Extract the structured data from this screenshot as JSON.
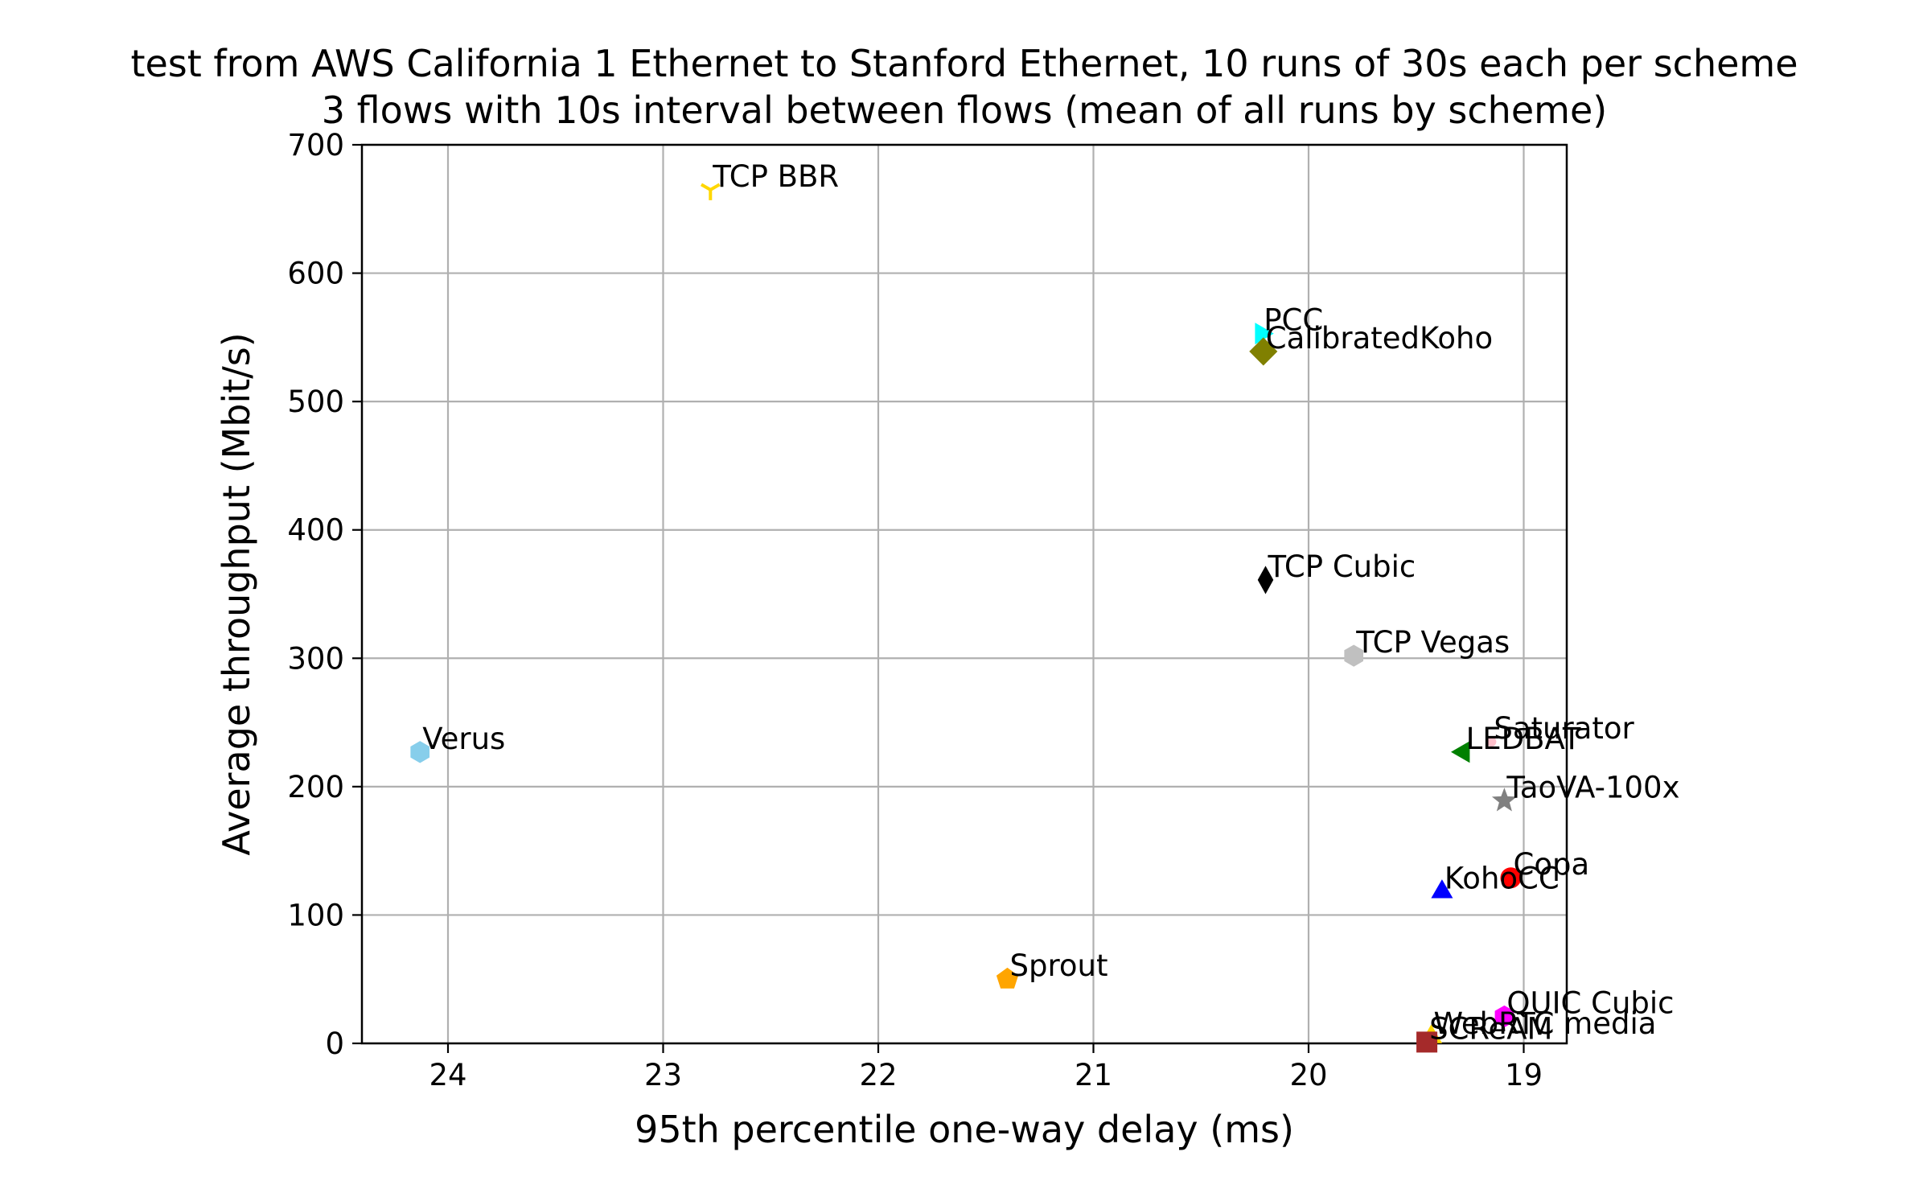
{
  "chart_data": {
    "type": "scatter",
    "title": "test from AWS California 1 Ethernet to Stanford Ethernet, 10 runs of 30s each per scheme",
    "subtitle": "3 flows with 10s interval between flows (mean of all runs by scheme)",
    "xlabel": "95th percentile one-way delay (ms)",
    "ylabel": "Average throughput (Mbit/s)",
    "xlim": [
      24.4,
      18.8
    ],
    "ylim": [
      0,
      700
    ],
    "x_inverted": true,
    "grid": true,
    "xticks": [
      "24",
      "23",
      "22",
      "21",
      "20",
      "19"
    ],
    "xtick_values": [
      24,
      23,
      22,
      21,
      20,
      19
    ],
    "yticks": [
      "0",
      "100",
      "200",
      "300",
      "400",
      "500",
      "600",
      "700"
    ],
    "ytick_values": [
      0,
      100,
      200,
      300,
      400,
      500,
      600,
      700
    ],
    "series": [
      {
        "name": "TCP BBR",
        "x": 22.78,
        "y": 665,
        "color": "#FFD700",
        "marker": "tri"
      },
      {
        "name": "PCC",
        "x": 20.22,
        "y": 553,
        "color": "#00FFFF",
        "marker": "triangle-right"
      },
      {
        "name": "CalibratedKoho",
        "x": 20.21,
        "y": 539,
        "color": "#808000",
        "marker": "diamond"
      },
      {
        "name": "TCP Cubic",
        "x": 20.2,
        "y": 361,
        "color": "#000000",
        "marker": "thin-diamond"
      },
      {
        "name": "TCP Vegas",
        "x": 19.79,
        "y": 302,
        "color": "#C0C0C0",
        "marker": "hexagon"
      },
      {
        "name": "Verus",
        "x": 24.13,
        "y": 227,
        "color": "#87CEEB",
        "marker": "hexagon"
      },
      {
        "name": "Saturator",
        "x": 19.15,
        "y": 235,
        "color": "#FFC0CB",
        "marker": "point"
      },
      {
        "name": "LEDBAT",
        "x": 19.28,
        "y": 227,
        "color": "#008000",
        "marker": "triangle-left"
      },
      {
        "name": "TaoVA-100x",
        "x": 19.09,
        "y": 189,
        "color": "#808080",
        "marker": "star"
      },
      {
        "name": "Copa",
        "x": 19.06,
        "y": 129,
        "color": "#FF0000",
        "marker": "circle"
      },
      {
        "name": "KohoCC",
        "x": 19.38,
        "y": 118,
        "color": "#0000FF",
        "marker": "triangle-up"
      },
      {
        "name": "Sprout",
        "x": 21.4,
        "y": 50,
        "color": "#FFA500",
        "marker": "pentagon"
      },
      {
        "name": "QUIC Cubic",
        "x": 19.09,
        "y": 21,
        "color": "#FF00FF",
        "marker": "hexagon"
      },
      {
        "name": "WebRTC media",
        "x": 19.43,
        "y": 5,
        "color": "#FFD700",
        "marker": "triangle-up"
      },
      {
        "name": "SCReAM",
        "x": 19.45,
        "y": 1,
        "color": "#A52A2A",
        "marker": "square"
      }
    ]
  }
}
